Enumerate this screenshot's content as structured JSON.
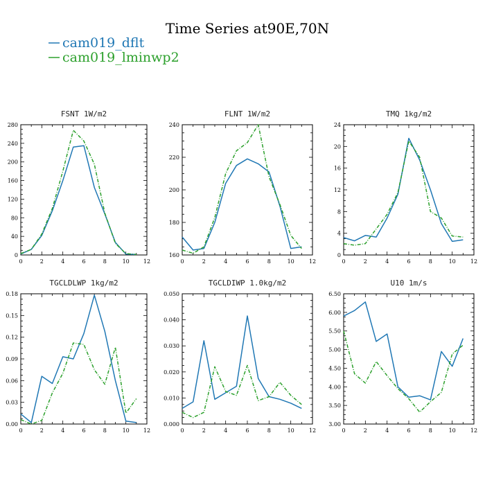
{
  "title": "Time Series at90E,70N",
  "legend": [
    {
      "label": "cam019_dflt",
      "color": "#1f77b4"
    },
    {
      "label": "cam019_lminwp2",
      "color": "#2ca02c",
      "dashed": true
    }
  ],
  "chart_data": [
    {
      "type": "line",
      "title": "FSNT  1W/m2",
      "x": [
        0,
        1,
        2,
        3,
        4,
        5,
        6,
        7,
        8,
        9,
        10,
        11
      ],
      "xlim": [
        0,
        12
      ],
      "xticks": [
        "0",
        "2",
        "4",
        "6",
        "8",
        "10",
        "12"
      ],
      "ylim": [
        0,
        280
      ],
      "yticks": [
        "0",
        "40",
        "80",
        "120",
        "160",
        "200",
        "240",
        "280"
      ],
      "series": [
        {
          "name": "cam019_dflt",
          "values": [
            2,
            12,
            42,
            95,
            160,
            232,
            235,
            145,
            88,
            27,
            2,
            1
          ]
        },
        {
          "name": "cam019_lminwp2",
          "values": [
            3,
            12,
            45,
            100,
            180,
            268,
            245,
            195,
            90,
            25,
            3,
            1
          ]
        }
      ]
    },
    {
      "type": "line",
      "title": "FLNT  1W/m2",
      "x": [
        0,
        1,
        2,
        3,
        4,
        5,
        6,
        7,
        8,
        9,
        10,
        11
      ],
      "xlim": [
        0,
        12
      ],
      "xticks": [
        "0",
        "2",
        "4",
        "6",
        "8",
        "10",
        "12"
      ],
      "ylim": [
        160,
        240
      ],
      "yticks": [
        "160",
        "180",
        "200",
        "220",
        "240"
      ],
      "series": [
        {
          "name": "cam019_dflt",
          "values": [
            171,
            163,
            164,
            180,
            204,
            215,
            219,
            216,
            211,
            190,
            164,
            165
          ]
        },
        {
          "name": "cam019_lminwp2",
          "values": [
            163,
            161,
            165,
            183,
            210,
            224,
            229,
            240,
            208,
            191,
            172,
            164
          ]
        }
      ]
    },
    {
      "type": "line",
      "title": "TMQ  1kg/m2",
      "x": [
        0,
        1,
        2,
        3,
        4,
        5,
        6,
        7,
        8,
        9,
        10,
        11
      ],
      "xlim": [
        0,
        12
      ],
      "xticks": [
        "0",
        "2",
        "4",
        "6",
        "8",
        "10",
        "12"
      ],
      "ylim": [
        0,
        24
      ],
      "yticks": [
        "0",
        "4",
        "8",
        "12",
        "16",
        "20",
        "24"
      ],
      "series": [
        {
          "name": "cam019_dflt",
          "values": [
            3.2,
            2.6,
            3.6,
            3.3,
            6.8,
            11.2,
            21.5,
            17.5,
            12.0,
            5.8,
            2.5,
            2.8
          ]
        },
        {
          "name": "cam019_lminwp2",
          "values": [
            2.1,
            1.8,
            2.1,
            4.8,
            7.5,
            11.5,
            21.0,
            18.0,
            8.0,
            6.8,
            3.5,
            3.3
          ]
        }
      ]
    },
    {
      "type": "line",
      "title": "TGCLDLWP  1kg/m2",
      "x": [
        0,
        1,
        2,
        3,
        4,
        5,
        6,
        7,
        8,
        9,
        10,
        11
      ],
      "xlim": [
        0,
        12
      ],
      "xticks": [
        "0",
        "2",
        "4",
        "6",
        "8",
        "10",
        "12"
      ],
      "ylim": [
        0,
        0.18
      ],
      "yticks": [
        "0.00",
        "0.03",
        "0.06",
        "0.09",
        "0.12",
        "0.15",
        "0.18"
      ],
      "series": [
        {
          "name": "cam019_dflt",
          "values": [
            0.014,
            0.002,
            0.066,
            0.056,
            0.093,
            0.09,
            0.125,
            0.178,
            0.128,
            0.06,
            0.004,
            0.002
          ]
        },
        {
          "name": "cam019_lminwp2",
          "values": [
            0.006,
            0.0,
            0.005,
            0.043,
            0.07,
            0.112,
            0.11,
            0.075,
            0.055,
            0.106,
            0.015,
            0.035
          ]
        }
      ]
    },
    {
      "type": "line",
      "title": "TGCLDIWP  1.0kg/m2",
      "x": [
        0,
        1,
        2,
        3,
        4,
        5,
        6,
        7,
        8,
        9,
        10,
        11
      ],
      "xlim": [
        0,
        12
      ],
      "xticks": [
        "0",
        "2",
        "4",
        "6",
        "8",
        "10",
        "12"
      ],
      "ylim": [
        0,
        0.05
      ],
      "yticks": [
        "0.000",
        "0.010",
        "0.020",
        "0.030",
        "0.040",
        "0.050"
      ],
      "series": [
        {
          "name": "cam019_dflt",
          "values": [
            0.006,
            0.0085,
            0.032,
            0.0095,
            0.012,
            0.0145,
            0.0415,
            0.0175,
            0.0105,
            0.0095,
            0.008,
            0.006
          ]
        },
        {
          "name": "cam019_lminwp2",
          "values": [
            0.0045,
            0.0025,
            0.0045,
            0.022,
            0.0125,
            0.011,
            0.0225,
            0.009,
            0.0105,
            0.016,
            0.011,
            0.0075
          ]
        }
      ]
    },
    {
      "type": "line",
      "title": "U10  1m/s",
      "x": [
        0,
        1,
        2,
        3,
        4,
        5,
        6,
        7,
        8,
        9,
        10,
        11
      ],
      "xlim": [
        0,
        12
      ],
      "xticks": [
        "0",
        "2",
        "4",
        "6",
        "8",
        "10",
        "12"
      ],
      "ylim": [
        3.0,
        6.5
      ],
      "yticks": [
        "3.00",
        "3.50",
        "4.00",
        "4.50",
        "5.00",
        "5.50",
        "6.00",
        "6.50"
      ],
      "series": [
        {
          "name": "cam019_dflt",
          "values": [
            5.9,
            6.05,
            6.28,
            5.22,
            5.42,
            4.0,
            3.72,
            3.76,
            3.65,
            4.95,
            4.55,
            5.3
          ]
        },
        {
          "name": "cam019_lminwp2",
          "values": [
            5.5,
            4.35,
            4.1,
            4.68,
            4.3,
            3.95,
            3.68,
            3.32,
            3.6,
            3.85,
            4.88,
            5.12
          ]
        }
      ]
    }
  ]
}
